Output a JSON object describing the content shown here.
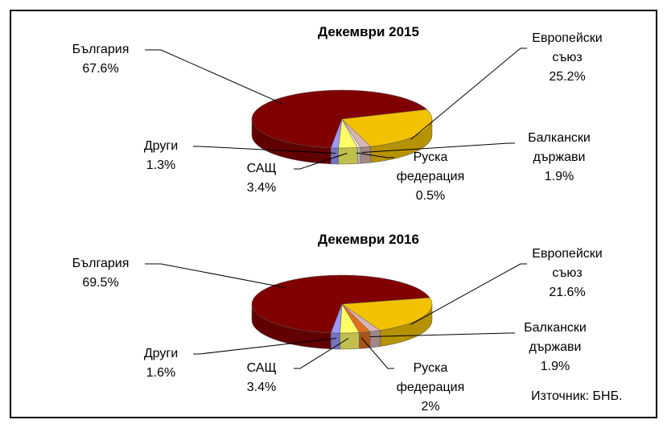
{
  "chart_data": [
    {
      "type": "pie3d",
      "title": "Декември 2015",
      "categories": [
        "България",
        "Европейски съюз",
        "Балкански държави",
        "Руска федерация",
        "САЩ",
        "Други"
      ],
      "values": [
        67.6,
        25.2,
        1.9,
        0.5,
        3.4,
        1.3
      ],
      "value_labels": [
        "67.6%",
        "25.2%",
        "1.9%",
        "0.5%",
        "3.4%",
        "1.3%"
      ],
      "colors": [
        "#800000",
        "#f2c200",
        "#d8b4b4",
        "#f4f4f4",
        "#ffff66",
        "#9999ff"
      ]
    },
    {
      "type": "pie3d",
      "title": "Декември 2016",
      "categories": [
        "България",
        "Европейски съюз",
        "Балкански държави",
        "Руска федерация",
        "САЩ",
        "Други"
      ],
      "values": [
        69.5,
        21.6,
        1.9,
        2,
        3.4,
        1.6
      ],
      "value_labels": [
        "69.5%",
        "21.6%",
        "1.9%",
        "2%",
        "3.4%",
        "1.6%"
      ],
      "colors": [
        "#800000",
        "#f2c200",
        "#d8b4b4",
        "#e07020",
        "#ffff66",
        "#9999ff"
      ]
    }
  ],
  "source": "Източник: БНБ."
}
